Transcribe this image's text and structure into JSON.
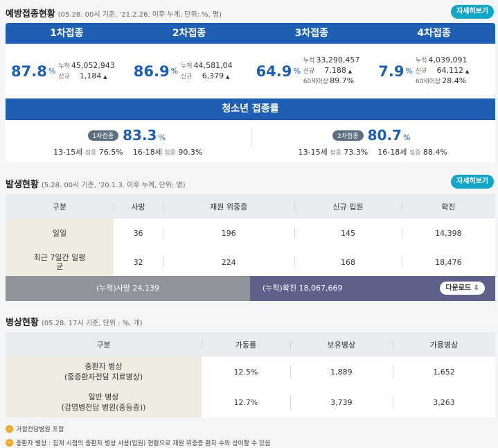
{
  "vaccination": {
    "title": "예방접종현황",
    "sub": "(05.28. 00시 기준, '21.2.26. 이후 누계, 단위: %, 명)",
    "more": "자세히보기",
    "doses": [
      {
        "label": "1차접종",
        "rate": "87.8",
        "pct": "%",
        "cum_k": "누적",
        "cum": "45,052,943",
        "new_k": "신규",
        "new": "1,184",
        "up": "▲"
      },
      {
        "label": "2차접종",
        "rate": "86.9",
        "pct": "%",
        "cum_k": "누적",
        "cum": "44,581,04",
        "new_k": "신규",
        "new": "6,379",
        "up": "▲"
      },
      {
        "label": "3차접종",
        "rate": "64.9",
        "pct": "%",
        "cum_k": "누적",
        "cum": "33,290,457",
        "new_k": "신규",
        "new": "7,188",
        "up": "▲",
        "s60_k": "60세이상",
        "s60": "89.7%"
      },
      {
        "label": "4차접종",
        "rate": "7.9",
        "pct": "%",
        "cum_k": "누적",
        "cum": "4,039,091",
        "new_k": "신규",
        "new": "64,112",
        "up": "▲",
        "s60_k": "60세이상",
        "s60": "28.4%"
      }
    ],
    "teen": {
      "title": "청소년 접종률",
      "first": {
        "chip": "1차접종",
        "rate": "83.3",
        "pct": "%",
        "a_age": "13-15세",
        "a_k": "접종",
        "a_v": "76.5%",
        "b_age": "16-18세",
        "b_k": "접종",
        "b_v": "90.3%"
      },
      "second": {
        "chip": "2차접종",
        "rate": "80.7",
        "pct": "%",
        "a_age": "13-15세",
        "a_k": "접종",
        "a_v": "73.3%",
        "b_age": "16-18세",
        "b_k": "접종",
        "b_v": "88.4%"
      }
    }
  },
  "occurrence": {
    "title": "발생현황",
    "sub": "(5.28. 00시 기준, '20.1.3. 이후 누계, 단위: 명)",
    "more": "자세히보기",
    "headers": [
      "구분",
      "사망",
      "재원 위중증",
      "신규 입원",
      "확진"
    ],
    "rows": [
      {
        "label": "일일",
        "values": [
          "36",
          "196",
          "145",
          "14,398"
        ]
      },
      {
        "label": "최근 7일간 일평균",
        "values": [
          "32",
          "224",
          "168",
          "18,476"
        ]
      }
    ],
    "cum_death": "(누적)사망  24,139",
    "cum_conf": "(누적)확진  18,067,669",
    "download": "다운로드 ⇩"
  },
  "beds": {
    "title": "병상현황",
    "sub": "(05.28. 17시 기준, 단위 : %, 개)",
    "headers": [
      "구분",
      "가동률",
      "보유병상",
      "가용병상"
    ],
    "rows": [
      {
        "label1": "중환자 병상",
        "label2": "(중증환자전담 치료병상)",
        "values": [
          "12.5%",
          "1,889",
          "1,652"
        ]
      },
      {
        "label1": "일반 병상",
        "label2": "(감염병전담 병원(중등증))",
        "values": [
          "12.7%",
          "3,739",
          "3,263"
        ]
      }
    ]
  },
  "notes": [
    "거점전담병원 포함",
    "중환자 병상 : 집계 시점의 중환자 병상 사용(입원) 현황으로 재원 위중증 환자 수와 상이할 수 있음"
  ]
}
